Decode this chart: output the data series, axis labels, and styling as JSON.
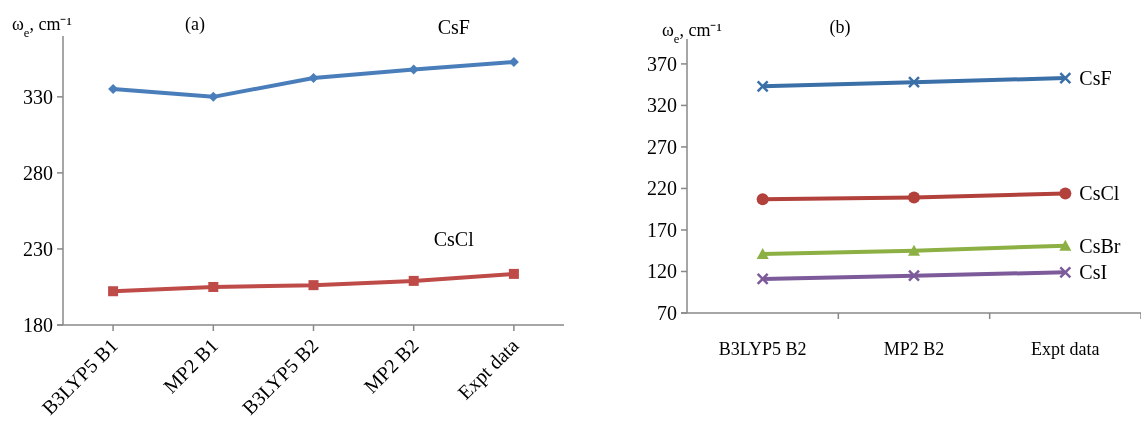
{
  "chart_data": [
    {
      "type": "line",
      "title": "(a)",
      "ylabel": "ω$_{e}$, cm⁻¹",
      "categories": [
        "B3LYP5 B1",
        "MP2 B1",
        "B3LYP5 B2",
        "MP2 B2",
        "Expt data"
      ],
      "ylim": [
        180,
        370
      ],
      "yticks": [
        180,
        230,
        280,
        330
      ],
      "legend": false,
      "grid": false,
      "series": [
        {
          "name": "CsF",
          "color": "#4a7ebb",
          "marker": "diamond",
          "values": [
            335.1,
            330,
            342.4,
            348,
            352.9
          ]
        },
        {
          "name": "CsCl",
          "color": "#be4b48",
          "marker": "square",
          "values": [
            202.2,
            205,
            206.2,
            209,
            213.6
          ]
        }
      ]
    },
    {
      "type": "line",
      "title": "(b)",
      "ylabel": "ω$_{e}$, cm⁻¹",
      "categories": [
        "B3LYP5 B2",
        "MP2 B2",
        "Expt data"
      ],
      "ylim": [
        70,
        400
      ],
      "yticks": [
        70,
        120,
        170,
        220,
        270,
        320,
        370
      ],
      "legend": false,
      "grid": false,
      "series": [
        {
          "name": "CsF",
          "color": "#3a6fa8",
          "marker": "cross",
          "values": [
            343,
            348,
            353
          ]
        },
        {
          "name": "CsCl",
          "color": "#b2413c",
          "marker": "circle",
          "values": [
            207,
            209,
            214
          ]
        },
        {
          "name": "CsBr",
          "color": "#8cb043",
          "marker": "triangle",
          "values": [
            141,
            145,
            151
          ]
        },
        {
          "name": "CsI",
          "color": "#7d5a9a",
          "marker": "cross",
          "values": [
            111,
            115,
            119
          ]
        }
      ]
    }
  ]
}
